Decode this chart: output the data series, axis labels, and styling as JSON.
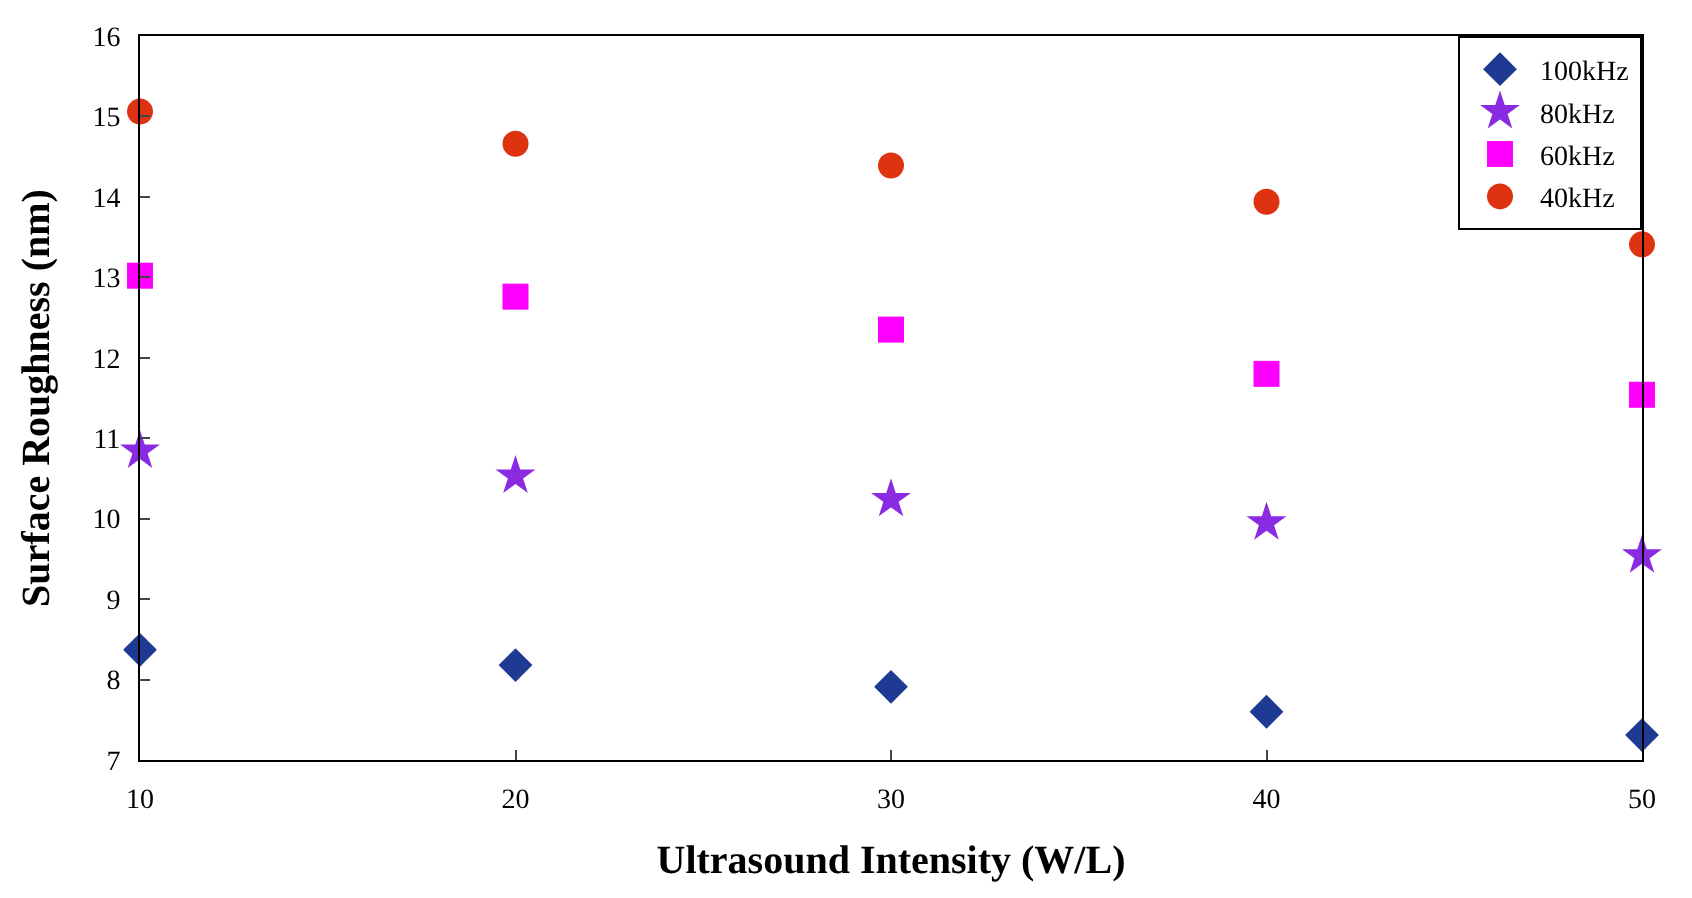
{
  "chart_data": {
    "type": "scatter",
    "xlabel": "Ultrasound Intensity (W/L)",
    "ylabel": "Surface Roughness (nm)",
    "x": [
      10,
      20,
      30,
      40,
      50
    ],
    "series": [
      {
        "name": "100kHz",
        "color": "#1f3a93",
        "marker": "diamond",
        "values": [
          8.37,
          8.18,
          7.91,
          7.6,
          7.31
        ]
      },
      {
        "name": "80kHz",
        "color": "#8a2be2",
        "marker": "star",
        "values": [
          10.84,
          10.53,
          10.24,
          9.95,
          9.54
        ]
      },
      {
        "name": "60kHz",
        "color": "#ff00ff",
        "marker": "square",
        "values": [
          13.02,
          12.76,
          12.35,
          11.8,
          11.54
        ]
      },
      {
        "name": "40kHz",
        "color": "#dd3311",
        "marker": "circle",
        "values": [
          15.06,
          14.66,
          14.39,
          13.94,
          13.41
        ]
      }
    ],
    "xlim": [
      10,
      50
    ],
    "xticks": [
      10,
      20,
      30,
      40,
      50
    ],
    "ylim": [
      7,
      16
    ],
    "yticks": [
      7,
      8,
      9,
      10,
      11,
      12,
      13,
      14,
      15,
      16
    ],
    "legend": "top right"
  }
}
